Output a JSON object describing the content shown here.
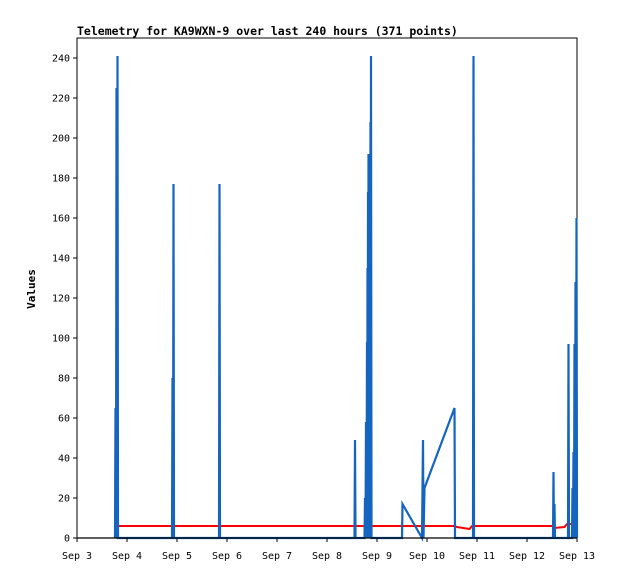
{
  "chart_data": {
    "type": "line",
    "title": "Telemetry for KA9WXN-9 over last 240 hours (371 points)",
    "xlabel": "",
    "ylabel": "Values",
    "x_unit": "day of September",
    "xlim": [
      3,
      13
    ],
    "ylim": [
      0,
      250
    ],
    "y_ticks": [
      0,
      20,
      40,
      60,
      80,
      100,
      120,
      140,
      160,
      180,
      200,
      220,
      240
    ],
    "x_ticks": [
      {
        "value": 3,
        "label": "Sep 3"
      },
      {
        "value": 4,
        "label": "Sep 4"
      },
      {
        "value": 5,
        "label": "Sep 5"
      },
      {
        "value": 6,
        "label": "Sep 6"
      },
      {
        "value": 7,
        "label": "Sep 7"
      },
      {
        "value": 8,
        "label": "Sep 8"
      },
      {
        "value": 9,
        "label": "Sep 9"
      },
      {
        "value": 10,
        "label": "Sep 10"
      },
      {
        "value": 11,
        "label": "Sep 11"
      },
      {
        "value": 12,
        "label": "Sep 12"
      },
      {
        "value": 13,
        "label": "Sep 13"
      }
    ],
    "grid": false,
    "legend": "none",
    "series": [
      {
        "color": "#ff0000",
        "points": [
          [
            3.76,
            0
          ],
          [
            3.77,
            6
          ],
          [
            8.85,
            6
          ],
          [
            8.9,
            6
          ],
          [
            10.55,
            6
          ],
          [
            10.6,
            5.5
          ],
          [
            10.85,
            4.5
          ],
          [
            10.9,
            6
          ],
          [
            12.5,
            6
          ],
          [
            12.55,
            5
          ],
          [
            12.75,
            5.5
          ],
          [
            12.8,
            7
          ],
          [
            12.95,
            7
          ],
          [
            13,
            8
          ]
        ]
      },
      {
        "color": "#1565c0",
        "points": [
          [
            3.76,
            0
          ],
          [
            3.77,
            65
          ],
          [
            3.78,
            0
          ],
          [
            3.79,
            225
          ],
          [
            3.8,
            0
          ],
          [
            3.81,
            241
          ],
          [
            3.82,
            0
          ],
          [
            4.9,
            0
          ],
          [
            4.91,
            80
          ],
          [
            4.92,
            0
          ],
          [
            4.93,
            177
          ],
          [
            4.94,
            0
          ],
          [
            5.84,
            0
          ],
          [
            5.85,
            177
          ],
          [
            5.86,
            0
          ],
          [
            8.55,
            0
          ],
          [
            8.56,
            49
          ],
          [
            8.57,
            0
          ],
          [
            8.75,
            0
          ],
          [
            8.76,
            20
          ],
          [
            8.77,
            0
          ],
          [
            8.78,
            58
          ],
          [
            8.79,
            0
          ],
          [
            8.8,
            98
          ],
          [
            8.805,
            0
          ],
          [
            8.81,
            135
          ],
          [
            8.815,
            0
          ],
          [
            8.82,
            173
          ],
          [
            8.825,
            0
          ],
          [
            8.83,
            192
          ],
          [
            8.835,
            0
          ],
          [
            8.84,
            140
          ],
          [
            8.845,
            0
          ],
          [
            8.85,
            100
          ],
          [
            8.855,
            0
          ],
          [
            8.86,
            180
          ],
          [
            8.865,
            0
          ],
          [
            8.87,
            208
          ],
          [
            8.875,
            0
          ],
          [
            8.88,
            241
          ],
          [
            8.89,
            0
          ],
          [
            9.5,
            0
          ],
          [
            9.51,
            17
          ],
          [
            9.9,
            0
          ],
          [
            9.92,
            49
          ],
          [
            9.93,
            0
          ],
          [
            9.95,
            25
          ],
          [
            10.55,
            65
          ],
          [
            10.56,
            0
          ],
          [
            10.92,
            0
          ],
          [
            10.93,
            241
          ],
          [
            10.94,
            0
          ],
          [
            12.52,
            0
          ],
          [
            12.53,
            33
          ],
          [
            12.54,
            0
          ],
          [
            12.55,
            17
          ],
          [
            12.56,
            0
          ],
          [
            12.82,
            0
          ],
          [
            12.83,
            97
          ],
          [
            12.84,
            0
          ],
          [
            12.9,
            0
          ],
          [
            12.91,
            25
          ],
          [
            12.92,
            0
          ],
          [
            12.93,
            43
          ],
          [
            12.94,
            0
          ],
          [
            12.95,
            97
          ],
          [
            12.96,
            0
          ],
          [
            12.97,
            128
          ],
          [
            12.98,
            0
          ],
          [
            12.99,
            160
          ],
          [
            13,
            0
          ]
        ]
      }
    ]
  }
}
